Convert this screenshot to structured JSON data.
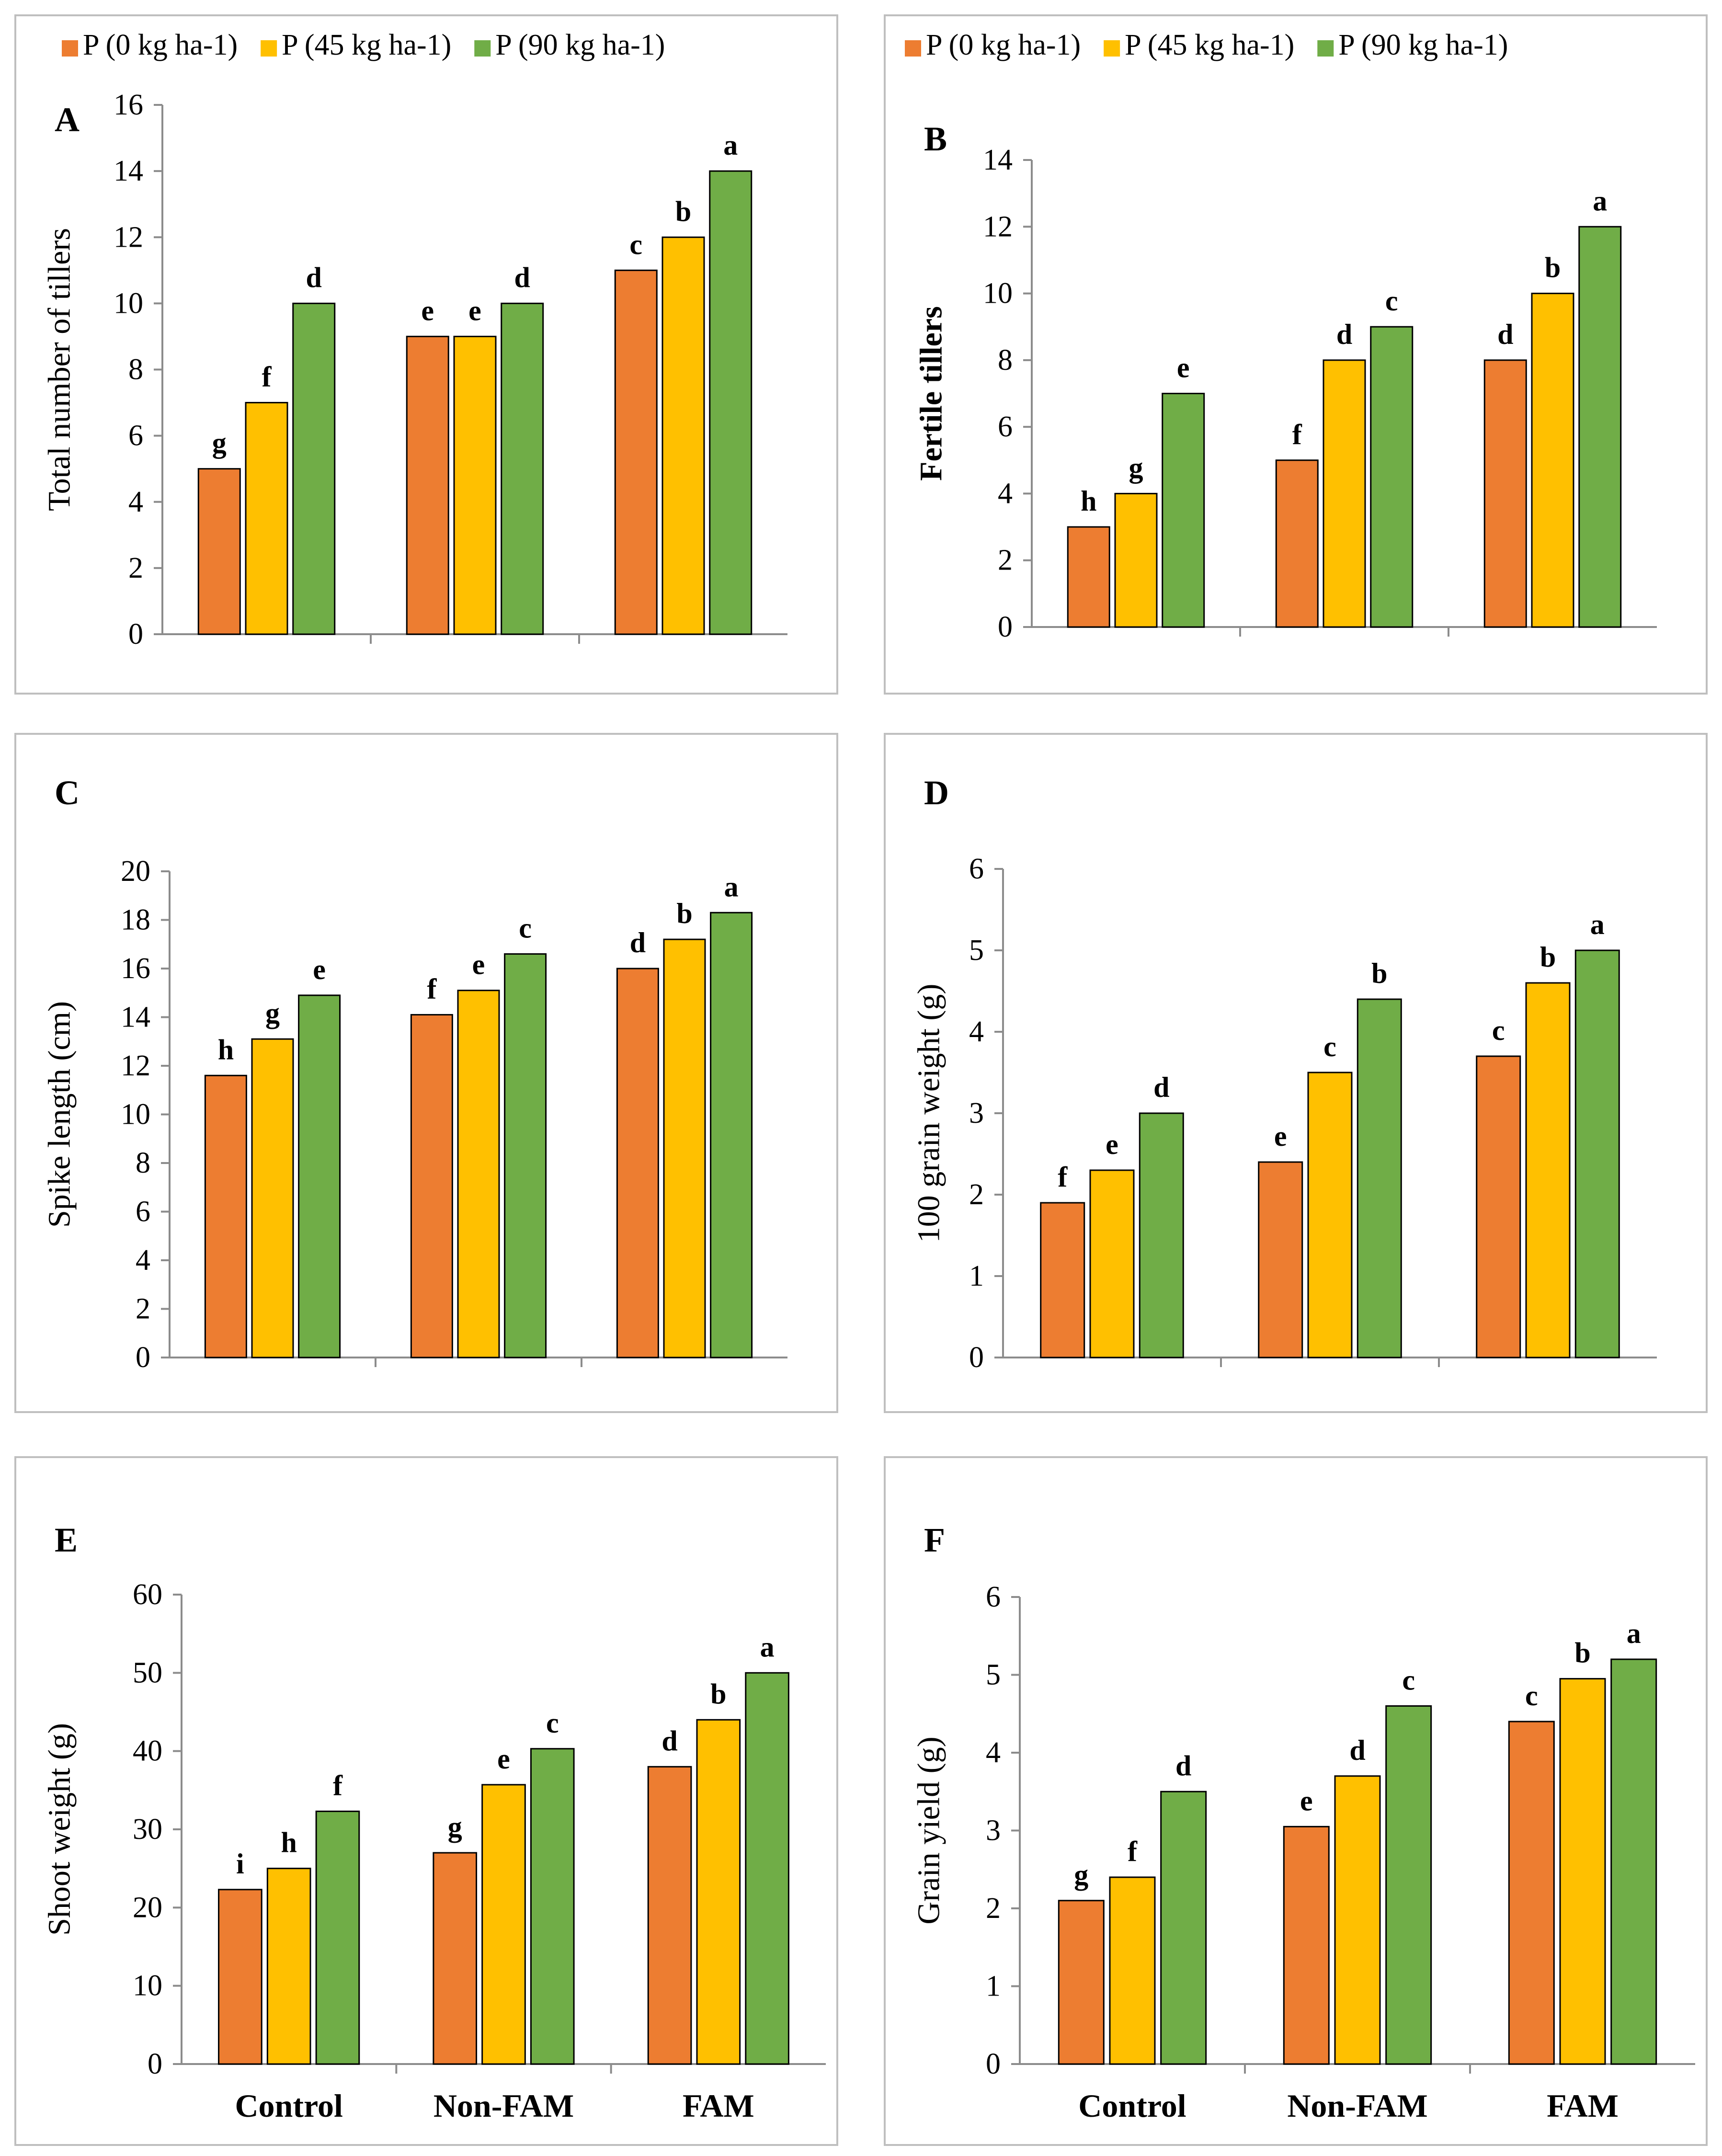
{
  "colors": {
    "p0": "#ed7d31",
    "p45": "#ffc000",
    "p90": "#70ad47"
  },
  "chart_data": [
    {
      "type": "bar",
      "panel_label": "A",
      "ylabel": "Total number of tillers",
      "ylabel_bold": false,
      "ylim": [
        0,
        16
      ],
      "yticks": [
        0,
        2,
        4,
        6,
        8,
        10,
        12,
        14,
        16
      ],
      "categories": [
        "Control",
        "Non-FAM",
        "FAM"
      ],
      "show_xlabels": false,
      "legend": "top",
      "series": [
        {
          "name": "P (0 kg ha-1)",
          "color": "#ed7d31",
          "values": [
            5,
            9,
            11
          ],
          "letters": [
            "g",
            "e",
            "c"
          ]
        },
        {
          "name": "P (45 kg ha-1)",
          "color": "#ffc000",
          "values": [
            7,
            9,
            12
          ],
          "letters": [
            "f",
            "e",
            "b"
          ]
        },
        {
          "name": "P (90 kg ha-1)",
          "color": "#70ad47",
          "values": [
            10,
            10,
            14
          ],
          "letters": [
            "d",
            "d",
            "a"
          ]
        }
      ]
    },
    {
      "type": "bar",
      "panel_label": "B",
      "ylabel": "Fertile tillers",
      "ylabel_bold": true,
      "ylim": [
        0,
        14
      ],
      "yticks": [
        0,
        2,
        4,
        6,
        8,
        10,
        12,
        14
      ],
      "categories": [
        "Control",
        "Non-FAM",
        "FAM"
      ],
      "show_xlabels": false,
      "legend": "top",
      "series": [
        {
          "name": "P (0 kg ha-1)",
          "color": "#ed7d31",
          "values": [
            3,
            5,
            8
          ],
          "letters": [
            "h",
            "f",
            "d"
          ]
        },
        {
          "name": "P (45 kg ha-1)",
          "color": "#ffc000",
          "values": [
            4,
            8,
            10
          ],
          "letters": [
            "g",
            "d",
            "b"
          ]
        },
        {
          "name": "P (90 kg ha-1)",
          "color": "#70ad47",
          "values": [
            7,
            9,
            12
          ],
          "letters": [
            "e",
            "c",
            "a"
          ]
        }
      ]
    },
    {
      "type": "bar",
      "panel_label": "C",
      "ylabel": "Spike length (cm)",
      "ylabel_bold": false,
      "ylim": [
        0,
        20
      ],
      "yticks": [
        0,
        2,
        4,
        6,
        8,
        10,
        12,
        14,
        16,
        18,
        20
      ],
      "categories": [
        "Control",
        "Non-FAM",
        "FAM"
      ],
      "show_xlabels": false,
      "legend": "none",
      "series": [
        {
          "name": "P (0 kg ha-1)",
          "color": "#ed7d31",
          "values": [
            11.6,
            14.1,
            16
          ],
          "letters": [
            "h",
            "f",
            "d"
          ]
        },
        {
          "name": "P (45 kg ha-1)",
          "color": "#ffc000",
          "values": [
            13.1,
            15.1,
            17.2
          ],
          "letters": [
            "g",
            "e",
            "b"
          ]
        },
        {
          "name": "P (90 kg ha-1)",
          "color": "#70ad47",
          "values": [
            14.9,
            16.6,
            18.3
          ],
          "letters": [
            "e",
            "c",
            "a"
          ]
        }
      ]
    },
    {
      "type": "bar",
      "panel_label": "D",
      "ylabel": "100 grain weight (g)",
      "ylabel_bold": false,
      "ylim": [
        0,
        6
      ],
      "yticks": [
        0,
        1,
        2,
        3,
        4,
        5,
        6
      ],
      "categories": [
        "Control",
        "Non-FAM",
        "FAM"
      ],
      "show_xlabels": false,
      "legend": "none",
      "series": [
        {
          "name": "P (0 kg ha-1)",
          "color": "#ed7d31",
          "values": [
            1.9,
            2.4,
            3.7
          ],
          "letters": [
            "f",
            "e",
            "c"
          ]
        },
        {
          "name": "P (45 kg ha-1)",
          "color": "#ffc000",
          "values": [
            2.3,
            3.5,
            4.6
          ],
          "letters": [
            "e",
            "c",
            "b"
          ]
        },
        {
          "name": "P (90 kg ha-1)",
          "color": "#70ad47",
          "values": [
            3,
            4.4,
            5
          ],
          "letters": [
            "d",
            "b",
            "a"
          ]
        }
      ]
    },
    {
      "type": "bar",
      "panel_label": "E",
      "ylabel": "Shoot weight (g)",
      "ylabel_bold": false,
      "ylim": [
        0,
        60
      ],
      "yticks": [
        0,
        10,
        20,
        30,
        40,
        50,
        60
      ],
      "categories": [
        "Control",
        "Non-FAM",
        "FAM"
      ],
      "show_xlabels": true,
      "legend": "none",
      "series": [
        {
          "name": "P (0 kg ha-1)",
          "color": "#ed7d31",
          "values": [
            22.3,
            27,
            38
          ],
          "letters": [
            "i",
            "g",
            "d"
          ]
        },
        {
          "name": "P (45 kg ha-1)",
          "color": "#ffc000",
          "values": [
            25,
            35.7,
            44
          ],
          "letters": [
            "h",
            "e",
            "b"
          ]
        },
        {
          "name": "P (90 kg ha-1)",
          "color": "#70ad47",
          "values": [
            32.3,
            40.3,
            50
          ],
          "letters": [
            "f",
            "c",
            "a"
          ]
        }
      ]
    },
    {
      "type": "bar",
      "panel_label": "F",
      "ylabel": "Grain yield (g)",
      "ylabel_bold": false,
      "ylim": [
        0,
        6
      ],
      "yticks": [
        0,
        1,
        2,
        3,
        4,
        5,
        6
      ],
      "categories": [
        "Control",
        "Non-FAM",
        "FAM"
      ],
      "show_xlabels": true,
      "legend": "none",
      "series": [
        {
          "name": "P (0 kg ha-1)",
          "color": "#ed7d31",
          "values": [
            2.1,
            3.05,
            4.4
          ],
          "letters": [
            "g",
            "e",
            "c"
          ]
        },
        {
          "name": "P (45 kg ha-1)",
          "color": "#ffc000",
          "values": [
            2.4,
            3.7,
            4.95
          ],
          "letters": [
            "f",
            "d",
            "b"
          ]
        },
        {
          "name": "P (90 kg ha-1)",
          "color": "#70ad47",
          "values": [
            3.5,
            4.6,
            5.2
          ],
          "letters": [
            "d",
            "c",
            "a"
          ]
        }
      ]
    }
  ]
}
